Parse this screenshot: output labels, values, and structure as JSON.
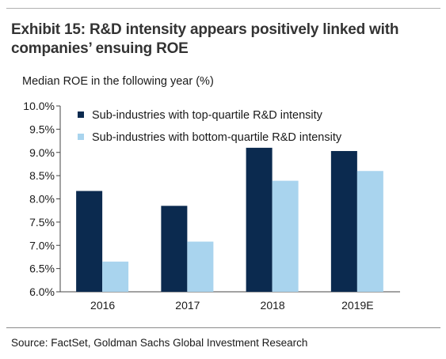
{
  "header": {
    "title": "Exhibit 15: R&D intensity appears positively linked with companies’ ensuing ROE"
  },
  "footer": {
    "source": "Source: FactSet, Goldman Sachs Global Investment Research"
  },
  "chart_data": {
    "type": "bar",
    "ylabel": "Median ROE in the following year (%)",
    "xlabel": "",
    "categories": [
      "2016",
      "2017",
      "2018",
      "2019E"
    ],
    "series": [
      {
        "name": "Sub-industries with top-quartile R&D intensity",
        "color": "#0b2a4f",
        "values": [
          8.17,
          7.85,
          9.1,
          9.03
        ]
      },
      {
        "name": "Sub-industries with bottom-quartile R&D intensity",
        "color": "#a9d4ee",
        "values": [
          6.65,
          7.08,
          8.39,
          8.6
        ]
      }
    ],
    "ylim": [
      6.0,
      10.0
    ],
    "yticks": [
      "6.0%",
      "6.5%",
      "7.0%",
      "7.5%",
      "8.0%",
      "8.5%",
      "9.0%",
      "9.5%",
      "10.0%"
    ],
    "grid": false,
    "legend": "top-left"
  }
}
